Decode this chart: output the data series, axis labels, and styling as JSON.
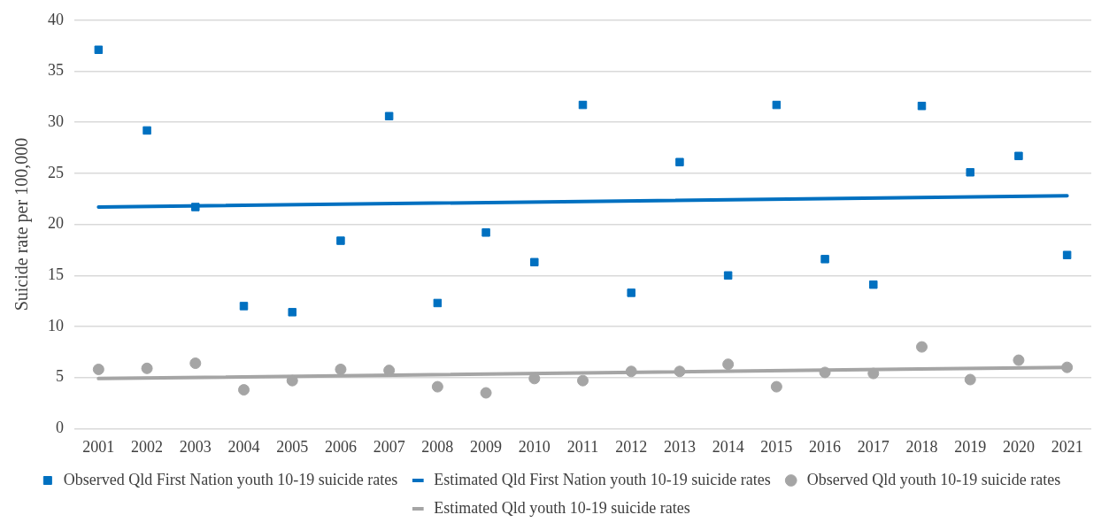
{
  "chart_data": {
    "type": "scatter",
    "ylabel": "Suicide rate per 100,000",
    "categories": [
      "2001",
      "2002",
      "2003",
      "2004",
      "2005",
      "2006",
      "2007",
      "2008",
      "2009",
      "2010",
      "2011",
      "2012",
      "2013",
      "2014",
      "2015",
      "2016",
      "2017",
      "2018",
      "2019",
      "2020",
      "2021"
    ],
    "series": [
      {
        "name": "Observed Qld First Nation youth 10-19 suicide rates",
        "type": "scatter",
        "marker": "square",
        "color": "#0070c0",
        "values": [
          37.1,
          29.2,
          21.7,
          12.0,
          11.4,
          18.4,
          30.6,
          12.3,
          19.2,
          16.3,
          31.7,
          13.3,
          26.1,
          15.0,
          31.7,
          16.6,
          14.1,
          31.6,
          25.1,
          26.7,
          17.0
        ]
      },
      {
        "name": "Estimated Qld First Nation youth 10-19 suicide rates",
        "type": "line",
        "marker": "none",
        "color": "#0070c0",
        "values": [
          21.7,
          null,
          null,
          null,
          null,
          null,
          null,
          null,
          null,
          null,
          null,
          null,
          null,
          null,
          null,
          null,
          null,
          null,
          null,
          null,
          22.8
        ]
      },
      {
        "name": "Observed Qld youth 10-19 suicide rates",
        "type": "scatter",
        "marker": "circle",
        "color": "#a5a5a5",
        "values": [
          5.8,
          5.9,
          6.4,
          3.8,
          4.7,
          5.8,
          5.7,
          4.1,
          3.5,
          4.9,
          4.7,
          5.6,
          5.6,
          6.3,
          4.1,
          5.5,
          5.4,
          8.0,
          4.8,
          6.7,
          6.0
        ]
      },
      {
        "name": "Estimated Qld youth 10-19 suicide rates",
        "type": "line",
        "marker": "none",
        "color": "#a5a5a5",
        "values": [
          4.9,
          null,
          null,
          null,
          null,
          null,
          null,
          null,
          null,
          null,
          null,
          null,
          null,
          null,
          null,
          null,
          null,
          null,
          null,
          null,
          6.0
        ]
      }
    ],
    "ylim": [
      0,
      40
    ],
    "yticks": [
      0,
      5,
      10,
      15,
      20,
      25,
      30,
      35,
      40
    ],
    "grid": "y",
    "legend": "bottom"
  }
}
